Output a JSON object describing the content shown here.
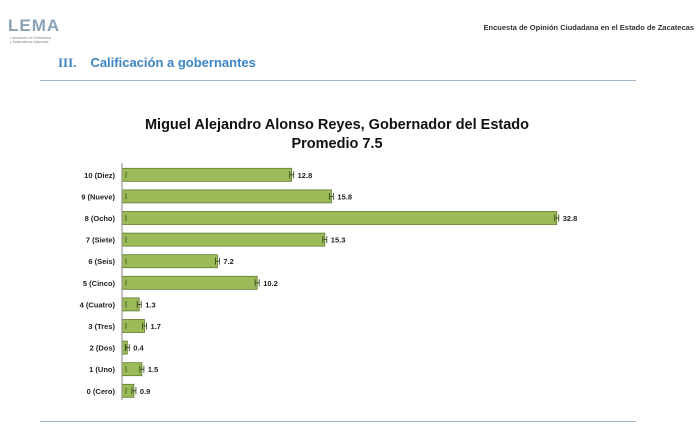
{
  "header": {
    "logo_text": "LEMA",
    "logo_subtitle": [
      "Laboratorio de Estadística",
      "y Matemáticas Aplicadas"
    ],
    "survey_title": "Encuesta de Opinión Ciudadana en el Estado de Zacatecas"
  },
  "section": {
    "number": "III.",
    "title": "Calificación a gobernantes"
  },
  "colors": {
    "bar_fill": "#9bbb59",
    "bar_stroke": "#5f7a2e",
    "section_blue": "#3d84c6",
    "rule": "#9fb8cf"
  },
  "chart_data": {
    "type": "bar",
    "orientation": "horizontal",
    "title": "Miguel Alejandro Alonso Reyes, Gobernador del Estado",
    "subtitle": "Promedio 7.5",
    "categories": [
      "10 (Diez)",
      "9 (Nueve)",
      "8 (Ocho)",
      "7 (Siete)",
      "6 (Seis)",
      "5 (Cinco)",
      "4 (Cuatro)",
      "3 (Tres)",
      "2 (Dos)",
      "1 (Uno)",
      "0 (Cero)"
    ],
    "values": [
      12.8,
      15.8,
      32.8,
      15.3,
      7.2,
      10.2,
      1.3,
      1.7,
      0.4,
      1.5,
      0.9
    ],
    "value_labels": [
      "12.8",
      "15.8",
      "32.8",
      "15.3",
      "7.2",
      "10.2",
      "1.3",
      "1.7",
      "0.4",
      "1.5",
      "0.9"
    ],
    "xlim": [
      0,
      33.5
    ],
    "grid": false,
    "legend": "none",
    "error_bars": true
  }
}
